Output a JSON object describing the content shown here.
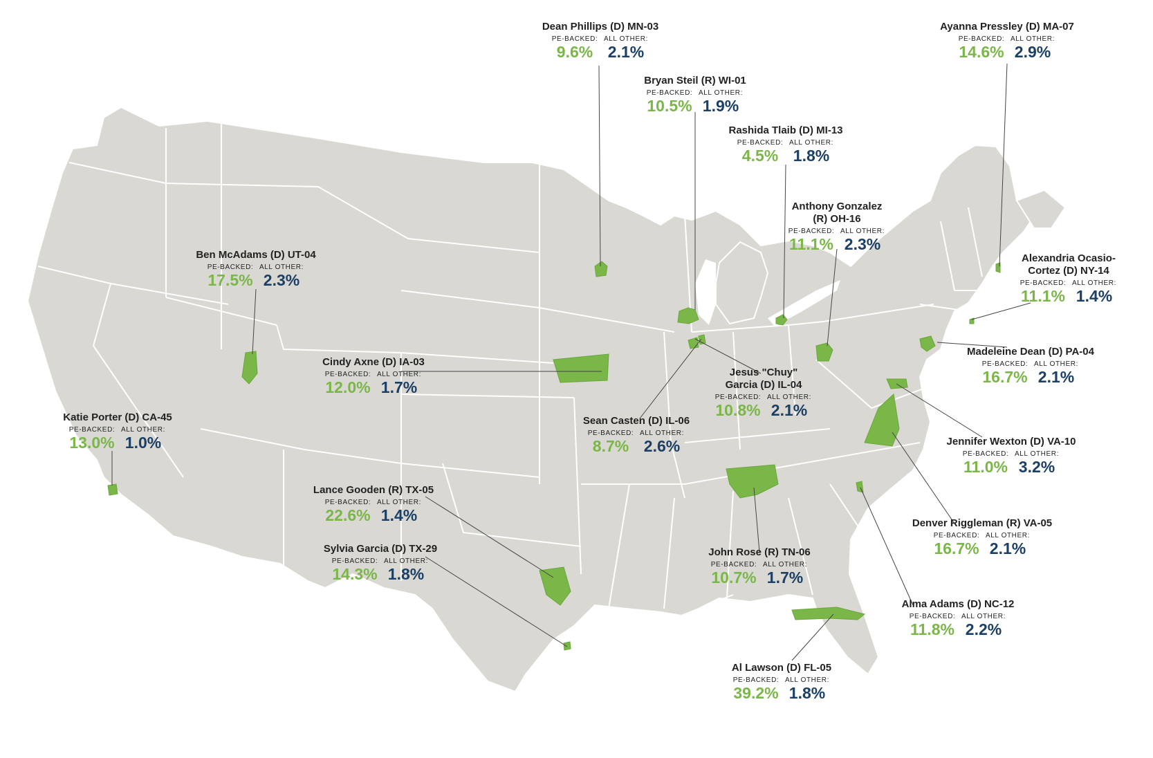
{
  "labels": {
    "pe_backed": "PE-BACKED:",
    "all_other": "ALL OTHER:"
  },
  "colors": {
    "land": "#d9d8d3",
    "border": "#ffffff",
    "district": "#7ab648",
    "pe_value": "#7ab648",
    "other_value": "#1c3f66",
    "leader": "#444444"
  },
  "districts": [
    {
      "name": "Dean Phillips (D) MN-03",
      "pe": "9.6%",
      "other": "2.1%"
    },
    {
      "name": "Bryan Steil (R) WI-01",
      "pe": "10.5%",
      "other": "1.9%"
    },
    {
      "name": "Ayanna Pressley (D) MA-07",
      "pe": "14.6%",
      "other": "2.9%"
    },
    {
      "name": "Rashida Tlaib (D) MI-13",
      "pe": "4.5%",
      "other": "1.8%"
    },
    {
      "name": "Anthony Gonzalez (R) OH-16",
      "pe": "11.1%",
      "other": "2.3%"
    },
    {
      "name": "Alexandria Ocasio-Cortez (D) NY-14",
      "pe": "11.1%",
      "other": "1.4%"
    },
    {
      "name": "Ben McAdams (D) UT-04",
      "pe": "17.5%",
      "other": "2.3%"
    },
    {
      "name": "Cindy Axne (D) IA-03",
      "pe": "12.0%",
      "other": "1.7%"
    },
    {
      "name": "Madeleine Dean (D) PA-04",
      "pe": "16.7%",
      "other": "2.1%"
    },
    {
      "name": "Jesus \"Chuy\" Garcia (D) IL-04",
      "pe": "10.8%",
      "other": "2.1%"
    },
    {
      "name": "Katie Porter (D) CA-45",
      "pe": "13.0%",
      "other": "1.0%"
    },
    {
      "name": "Sean Casten (D) IL-06",
      "pe": "8.7%",
      "other": "2.6%"
    },
    {
      "name": "Jennifer Wexton (D) VA-10",
      "pe": "11.0%",
      "other": "3.2%"
    },
    {
      "name": "Lance Gooden (R) TX-05",
      "pe": "22.6%",
      "other": "1.4%"
    },
    {
      "name": "Denver Riggleman (R) VA-05",
      "pe": "16.7%",
      "other": "2.1%"
    },
    {
      "name": "Sylvia Garcia (D) TX-29",
      "pe": "14.3%",
      "other": "1.8%"
    },
    {
      "name": "John Rose (R) TN-06",
      "pe": "10.7%",
      "other": "1.7%"
    },
    {
      "name": "Alma Adams (D) NC-12",
      "pe": "11.8%",
      "other": "2.2%"
    },
    {
      "name": "Al Lawson (D) FL-05",
      "pe": "39.2%",
      "other": "1.8%"
    }
  ]
}
